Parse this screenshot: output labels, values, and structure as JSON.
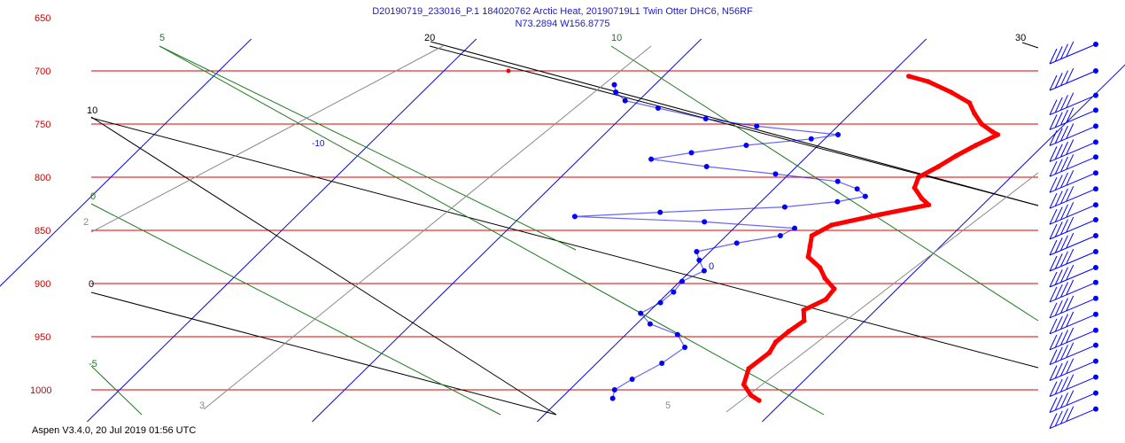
{
  "header": {
    "line1": "D20190719_233016_P.1 184020762 Arctic Heat, 20190719L1 Twin Otter DHC6, N56RF",
    "line2": "N73.2894 W156.8775"
  },
  "footer": {
    "version": "Aspen V3.4.0, 20 Jul 2019  01:56 UTC"
  },
  "colors": {
    "isobar": "#e00000",
    "pressure_label": "#d00000",
    "isotherm": "#1010d0",
    "dry_adiabat": "#000000",
    "moist_adiabat": "#1f7a1f",
    "mixing_ratio": "#8a8a8a",
    "temperature": "#ff0000",
    "dewpoint": "#0000ff",
    "wind_barb": "#0000ff"
  },
  "chart_data": {
    "type": "skew-t",
    "pressure_levels": [
      650,
      700,
      750,
      800,
      850,
      900,
      950,
      1000
    ],
    "isotherm_labels": [
      "-10",
      "0"
    ],
    "dry_adiabat_labels": [
      "20",
      "30",
      "10",
      "0"
    ],
    "moist_adiabat_labels": [
      "5",
      "10",
      "0",
      "-5"
    ],
    "mixing_ratio_labels": [
      "2",
      "3",
      "5"
    ],
    "temperature_profile": {
      "units": "degC",
      "points": [
        [
          705,
          0.9
        ],
        [
          710,
          2.0
        ],
        [
          720,
          3.5
        ],
        [
          730,
          4.8
        ],
        [
          740,
          5.5
        ],
        [
          750,
          6.3
        ],
        [
          757,
          7.1
        ],
        [
          760,
          7.5
        ],
        [
          770,
          7.0
        ],
        [
          780,
          6.6
        ],
        [
          790,
          6.3
        ],
        [
          800,
          5.9
        ],
        [
          810,
          6.2
        ],
        [
          820,
          7.0
        ],
        [
          826,
          7.6
        ],
        [
          835,
          5.9
        ],
        [
          845,
          4.2
        ],
        [
          855,
          3.8
        ],
        [
          865,
          4.2
        ],
        [
          875,
          4.6
        ],
        [
          885,
          5.6
        ],
        [
          895,
          6.3
        ],
        [
          905,
          7.2
        ],
        [
          915,
          7.3
        ],
        [
          925,
          6.8
        ],
        [
          935,
          7.3
        ],
        [
          945,
          7.1
        ],
        [
          955,
          7.0
        ],
        [
          965,
          7.2
        ],
        [
          980,
          7.0
        ],
        [
          995,
          7.5
        ],
        [
          1005,
          8.3
        ],
        [
          1010,
          8.9
        ]
      ]
    },
    "dewpoint_profile": {
      "units": "degC",
      "points": [
        [
          713,
          -11.8
        ],
        [
          720,
          -11.4
        ],
        [
          728,
          -10.6
        ],
        [
          735,
          -8.8
        ],
        [
          745,
          -6.2
        ],
        [
          752,
          -3.6
        ],
        [
          760,
          0.4
        ],
        [
          764,
          -0.6
        ],
        [
          770,
          -3.2
        ],
        [
          777,
          -5.3
        ],
        [
          783,
          -6.8
        ],
        [
          790,
          -4.0
        ],
        [
          797,
          -0.6
        ],
        [
          804,
          2.5
        ],
        [
          811,
          3.7
        ],
        [
          818,
          4.4
        ],
        [
          823,
          3.4
        ],
        [
          828,
          1.3
        ],
        [
          833,
          -4.0
        ],
        [
          837,
          -7.6
        ],
        [
          842,
          -1.6
        ],
        [
          848,
          2.7
        ],
        [
          855,
          2.4
        ],
        [
          862,
          0.8
        ],
        [
          870,
          -0.6
        ],
        [
          878,
          -0.1
        ],
        [
          888,
          0.6
        ],
        [
          898,
          0.1
        ],
        [
          908,
          0.2
        ],
        [
          918,
          0.1
        ],
        [
          928,
          -0.3
        ],
        [
          938,
          0.6
        ],
        [
          948,
          2.3
        ],
        [
          960,
          3.2
        ],
        [
          975,
          2.9
        ],
        [
          990,
          2.3
        ],
        [
          1000,
          2.0
        ],
        [
          1008,
          2.3
        ]
      ]
    },
    "wind_profile": {
      "units": "kt",
      "points": [
        [
          675,
          225,
          40
        ],
        [
          700,
          225,
          40
        ],
        [
          723,
          225,
          40
        ],
        [
          737,
          225,
          40
        ],
        [
          752,
          225,
          40
        ],
        [
          767,
          225,
          40
        ],
        [
          781,
          225,
          40
        ],
        [
          796,
          225,
          40
        ],
        [
          811,
          225,
          40
        ],
        [
          826,
          225,
          40
        ],
        [
          840,
          225,
          40
        ],
        [
          855,
          225,
          40
        ],
        [
          870,
          225,
          40
        ],
        [
          885,
          225,
          40
        ],
        [
          899,
          225,
          40
        ],
        [
          914,
          225,
          40
        ],
        [
          929,
          225,
          40
        ],
        [
          944,
          225,
          40
        ],
        [
          958,
          225,
          40
        ],
        [
          973,
          225,
          40
        ],
        [
          988,
          225,
          40
        ],
        [
          1003,
          225,
          40
        ],
        [
          1018,
          225,
          40
        ]
      ]
    }
  }
}
